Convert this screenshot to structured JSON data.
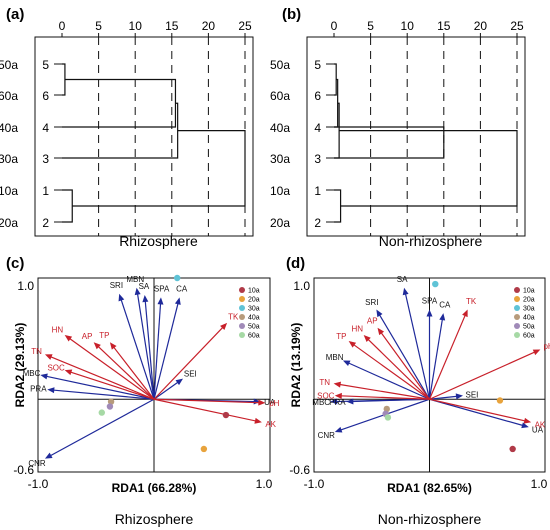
{
  "colors": {
    "env": "#1f2a9a",
    "soil": "#c8202a",
    "line": "#111111"
  },
  "dendrograms": [
    {
      "panel_label": "(a)",
      "name": "Rhizosphere",
      "ticks": [
        "0",
        "5",
        "10",
        "15",
        "20",
        "25"
      ],
      "tick_values": [
        0,
        5,
        10,
        15,
        20,
        25
      ],
      "leaves": [
        {
          "name": "50a",
          "num": "5"
        },
        {
          "name": "60a",
          "num": "6"
        },
        {
          "name": "40a",
          "num": "4"
        },
        {
          "name": "30a",
          "num": "3"
        },
        {
          "name": "10a",
          "num": "1"
        },
        {
          "name": "20a",
          "num": "2"
        }
      ],
      "merges": [
        {
          "a": [
            0
          ],
          "b": [
            1
          ],
          "height": 0.4
        },
        {
          "a": [
            0,
            1
          ],
          "b": [
            2
          ],
          "height": 15.5
        },
        {
          "a": [
            4
          ],
          "b": [
            5
          ],
          "height": 1.4
        },
        {
          "a": [
            0,
            1,
            2
          ],
          "b": [
            3
          ],
          "height": 15.8
        },
        {
          "a": [
            0,
            1,
            2,
            3
          ],
          "b": [
            4,
            5
          ],
          "height": 25
        }
      ]
    },
    {
      "panel_label": "(b)",
      "name": "Non-rhizosphere",
      "ticks": [
        "0",
        "5",
        "10",
        "15",
        "20",
        "25"
      ],
      "tick_values": [
        0,
        5,
        10,
        15,
        20,
        25
      ],
      "leaves": [
        {
          "name": "50a",
          "num": "5"
        },
        {
          "name": "60a",
          "num": "6"
        },
        {
          "name": "40a",
          "num": "4"
        },
        {
          "name": "30a",
          "num": "3"
        },
        {
          "name": "10a",
          "num": "1"
        },
        {
          "name": "20a",
          "num": "2"
        }
      ],
      "merges": [
        {
          "a": [
            0
          ],
          "b": [
            1
          ],
          "height": 0.3
        },
        {
          "a": [
            0,
            1
          ],
          "b": [
            2
          ],
          "height": 0.5
        },
        {
          "a": [
            0,
            1,
            2
          ],
          "b": [
            3
          ],
          "height": 0.7
        },
        {
          "a": [
            4
          ],
          "b": [
            5
          ],
          "height": 0.9
        },
        {
          "a": [
            2
          ],
          "b": [
            3
          ],
          "height": 15
        },
        {
          "a": [
            0,
            1,
            2,
            3
          ],
          "b": [
            4,
            5
          ],
          "height": 25
        }
      ]
    }
  ],
  "chart_data": [
    {
      "type": "scatter",
      "panel_label": "(c)",
      "name": "Rhizosphere",
      "xlabel": "RDA1 (66.28%)",
      "ylabel": "RDA2 (29.13%)",
      "xlim": [
        -1.0,
        1.0
      ],
      "ylim": [
        -0.6,
        1.0
      ],
      "x_ticks": [
        "-1.0",
        "1.0"
      ],
      "y_ticks": [
        "1.0",
        "-0.6"
      ],
      "legend": [
        {
          "label": "10a",
          "color": "#b03a48"
        },
        {
          "label": "20a",
          "color": "#e8a33c"
        },
        {
          "label": "30a",
          "color": "#5fc3d6"
        },
        {
          "label": "40a",
          "color": "#b79b7c"
        },
        {
          "label": "50a",
          "color": "#a08ab8"
        },
        {
          "label": "60a",
          "color": "#a6d9a5"
        }
      ],
      "env_arrows": [
        {
          "label": "SRI",
          "x": -0.3,
          "y": 0.87
        },
        {
          "label": "MBN",
          "x": -0.15,
          "y": 0.92
        },
        {
          "label": "SA",
          "x": -0.08,
          "y": 0.86
        },
        {
          "label": "SPA",
          "x": 0.06,
          "y": 0.84
        },
        {
          "label": "CA",
          "x": 0.22,
          "y": 0.84
        },
        {
          "label": "SEI",
          "x": 0.25,
          "y": 0.17
        },
        {
          "label": "MBC",
          "x": -0.98,
          "y": 0.2
        },
        {
          "label": "PRA",
          "x": -0.92,
          "y": 0.08
        },
        {
          "label": "UA",
          "x": 0.92,
          "y": -0.02
        },
        {
          "label": "CNR",
          "x": -0.94,
          "y": -0.49
        }
      ],
      "soil_arrows": [
        {
          "label": "TK",
          "x": 0.63,
          "y": 0.63
        },
        {
          "label": "HN",
          "x": -0.77,
          "y": 0.53
        },
        {
          "label": "AP",
          "x": -0.52,
          "y": 0.47
        },
        {
          "label": "TP",
          "x": -0.38,
          "y": 0.47
        },
        {
          "label": "TN",
          "x": -0.94,
          "y": 0.37
        },
        {
          "label": "SOC",
          "x": -0.77,
          "y": 0.24
        },
        {
          "label": "pH",
          "x": 0.96,
          "y": -0.03
        },
        {
          "label": "AK",
          "x": 0.93,
          "y": -0.19
        }
      ],
      "samples": [
        {
          "group": "10a",
          "x": 0.62,
          "y": -0.13
        },
        {
          "group": "20a",
          "x": 0.43,
          "y": -0.41
        },
        {
          "group": "30a",
          "x": 0.2,
          "y": 1.0
        },
        {
          "group": "40a",
          "x": -0.37,
          "y": -0.02
        },
        {
          "group": "50a",
          "x": -0.38,
          "y": -0.06
        },
        {
          "group": "60a",
          "x": -0.45,
          "y": -0.11
        }
      ]
    },
    {
      "type": "scatter",
      "panel_label": "(d)",
      "name": "Non-rhizosphere",
      "xlabel": "RDA1 (82.65%)",
      "ylabel": "RDA2 (13.19%)",
      "xlim": [
        -1.0,
        1.0
      ],
      "ylim": [
        -0.6,
        1.0
      ],
      "x_ticks": [
        "-1.0",
        "1.0"
      ],
      "y_ticks": [
        "1.0",
        "-0.6"
      ],
      "legend": [
        {
          "label": "10a",
          "color": "#b03a48"
        },
        {
          "label": "20a",
          "color": "#e8a33c"
        },
        {
          "label": "30a",
          "color": "#5fc3d6"
        },
        {
          "label": "40a",
          "color": "#b79b7c"
        },
        {
          "label": "50a",
          "color": "#a08ab8"
        },
        {
          "label": "60a",
          "color": "#a6d9a5"
        }
      ],
      "env_arrows": [
        {
          "label": "SA",
          "x": -0.22,
          "y": 0.92
        },
        {
          "label": "SRI",
          "x": -0.46,
          "y": 0.74
        },
        {
          "label": "SPA",
          "x": 0.0,
          "y": 0.74
        },
        {
          "label": "CA",
          "x": 0.12,
          "y": 0.71
        },
        {
          "label": "MBN",
          "x": -0.75,
          "y": 0.32
        },
        {
          "label": "SEI",
          "x": 0.29,
          "y": 0.03
        },
        {
          "label": "MBC",
          "x": -0.86,
          "y": -0.02
        },
        {
          "label": "PRA",
          "x": -0.72,
          "y": -0.02
        },
        {
          "label": "UA",
          "x": 0.86,
          "y": -0.23
        },
        {
          "label": "CNR",
          "x": -0.82,
          "y": -0.27
        }
      ],
      "soil_arrows": [
        {
          "label": "TK",
          "x": 0.33,
          "y": 0.74
        },
        {
          "label": "AP",
          "x": -0.45,
          "y": 0.59
        },
        {
          "label": "HN",
          "x": -0.57,
          "y": 0.53
        },
        {
          "label": "TP",
          "x": -0.7,
          "y": 0.48
        },
        {
          "label": "pH",
          "x": 0.96,
          "y": 0.41
        },
        {
          "label": "TN",
          "x": -0.83,
          "y": 0.13
        },
        {
          "label": "SOC",
          "x": -0.82,
          "y": 0.03
        },
        {
          "label": "AK",
          "x": 0.88,
          "y": -0.19
        }
      ],
      "samples": [
        {
          "group": "10a",
          "x": 0.72,
          "y": -0.41
        },
        {
          "group": "20a",
          "x": 0.61,
          "y": -0.01
        },
        {
          "group": "30a",
          "x": 0.05,
          "y": 0.95
        },
        {
          "group": "40a",
          "x": -0.37,
          "y": -0.08
        },
        {
          "group": "50a",
          "x": -0.38,
          "y": -0.12
        },
        {
          "group": "60a",
          "x": -0.36,
          "y": -0.15
        }
      ]
    }
  ]
}
